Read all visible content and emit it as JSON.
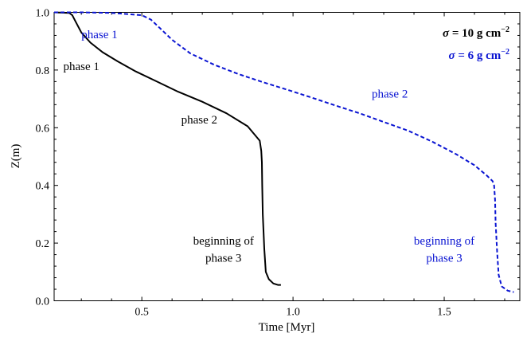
{
  "chart_data": {
    "type": "line",
    "xlabel": "Time [Myr]",
    "ylabel": "Z(m)",
    "xlim": [
      0.21,
      1.75
    ],
    "ylim": [
      0.0,
      1.0
    ],
    "x_ticks": [
      0.5,
      1.0,
      1.5
    ],
    "x_tick_labels": [
      "0.5",
      "1.0",
      "1.5"
    ],
    "y_ticks": [
      0.0,
      0.2,
      0.4,
      0.6,
      0.8,
      1.0
    ],
    "y_tick_labels": [
      "0.0",
      "0.2",
      "0.4",
      "0.6",
      "0.8",
      "1.0"
    ],
    "grid": false,
    "legend_position": "top-right",
    "legend": [
      {
        "sigma": "σ",
        "eq": " = 10 g cm",
        "sup": "−2",
        "color": "#000000"
      },
      {
        "sigma": "σ",
        "eq": " = 6 g cm",
        "sup": "−2",
        "color": "#0a14d2"
      }
    ],
    "series": [
      {
        "color": "#000000",
        "style": "solid",
        "x": [
          0.21,
          0.26,
          0.27,
          0.28,
          0.3,
          0.33,
          0.37,
          0.42,
          0.48,
          0.55,
          0.62,
          0.7,
          0.78,
          0.85,
          0.89,
          0.895,
          0.897,
          0.898,
          0.9,
          0.905,
          0.91,
          0.92,
          0.935,
          0.95,
          0.96
        ],
        "y": [
          1.0,
          0.998,
          0.99,
          0.97,
          0.93,
          0.895,
          0.862,
          0.83,
          0.795,
          0.76,
          0.725,
          0.69,
          0.65,
          0.605,
          0.555,
          0.52,
          0.48,
          0.4,
          0.3,
          0.18,
          0.1,
          0.075,
          0.06,
          0.055,
          0.055
        ]
      },
      {
        "color": "#0a14d2",
        "style": "dashed",
        "x": [
          0.21,
          0.3,
          0.4,
          0.5,
          0.53,
          0.56,
          0.6,
          0.66,
          0.74,
          0.82,
          0.9,
          0.98,
          1.06,
          1.14,
          1.22,
          1.3,
          1.38,
          1.46,
          1.54,
          1.6,
          1.64,
          1.66,
          1.665,
          1.668,
          1.67,
          1.675,
          1.68,
          1.69,
          1.71,
          1.73
        ],
        "y": [
          1.0,
          1.0,
          0.998,
          0.99,
          0.975,
          0.945,
          0.905,
          0.858,
          0.818,
          0.786,
          0.758,
          0.732,
          0.705,
          0.677,
          0.65,
          0.62,
          0.59,
          0.552,
          0.508,
          0.47,
          0.435,
          0.415,
          0.4,
          0.35,
          0.27,
          0.17,
          0.09,
          0.05,
          0.035,
          0.03
        ]
      }
    ],
    "annotations": [
      {
        "text": "phase 1",
        "x": 0.36,
        "y": 0.91,
        "color": "#0a14d2"
      },
      {
        "text": "phase 1",
        "x": 0.3,
        "y": 0.8,
        "color": "#000000"
      },
      {
        "text": "phase 2",
        "x": 1.32,
        "y": 0.705,
        "color": "#0a14d2"
      },
      {
        "text": "phase 2",
        "x": 0.69,
        "y": 0.615,
        "color": "#000000"
      },
      {
        "text": "beginning of",
        "x": 0.77,
        "y": 0.195,
        "color": "#000000"
      },
      {
        "text": "phase 3",
        "x": 0.77,
        "y": 0.135,
        "color": "#000000"
      },
      {
        "text": "beginning of",
        "x": 1.5,
        "y": 0.195,
        "color": "#0a14d2"
      },
      {
        "text": "phase 3",
        "x": 1.5,
        "y": 0.135,
        "color": "#0a14d2"
      }
    ]
  }
}
